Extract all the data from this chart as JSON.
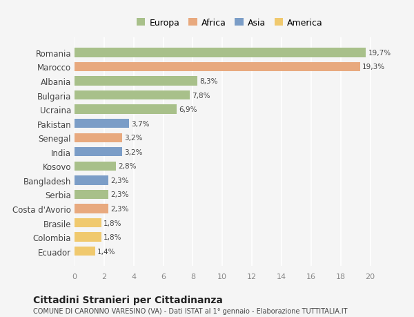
{
  "countries": [
    "Romania",
    "Marocco",
    "Albania",
    "Bulgaria",
    "Ucraina",
    "Pakistan",
    "Senegal",
    "India",
    "Kosovo",
    "Bangladesh",
    "Serbia",
    "Costa d'Avorio",
    "Brasile",
    "Colombia",
    "Ecuador"
  ],
  "values": [
    19.7,
    19.3,
    8.3,
    7.8,
    6.9,
    3.7,
    3.2,
    3.2,
    2.8,
    2.3,
    2.3,
    2.3,
    1.8,
    1.8,
    1.4
  ],
  "labels": [
    "19,7%",
    "19,3%",
    "8,3%",
    "7,8%",
    "6,9%",
    "3,7%",
    "3,2%",
    "3,2%",
    "2,8%",
    "2,3%",
    "2,3%",
    "2,3%",
    "1,8%",
    "1,8%",
    "1,4%"
  ],
  "continents": [
    "Europa",
    "Africa",
    "Europa",
    "Europa",
    "Europa",
    "Asia",
    "Africa",
    "Asia",
    "Europa",
    "Asia",
    "Europa",
    "Africa",
    "America",
    "America",
    "America"
  ],
  "continent_colors": {
    "Europa": "#a8c08a",
    "Africa": "#e8a97e",
    "Asia": "#7b9dc7",
    "America": "#f0c96e"
  },
  "legend_order": [
    "Europa",
    "Africa",
    "Asia",
    "America"
  ],
  "title": "Cittadini Stranieri per Cittadinanza",
  "subtitle": "COMUNE DI CARONNO VARESINO (VA) - Dati ISTAT al 1° gennaio - Elaborazione TUTTITALIA.IT",
  "xlim": [
    0,
    21
  ],
  "xticks": [
    0,
    2,
    4,
    6,
    8,
    10,
    12,
    14,
    16,
    18,
    20
  ],
  "bg_color": "#f5f5f5",
  "grid_color": "#ffffff",
  "bar_height": 0.65
}
